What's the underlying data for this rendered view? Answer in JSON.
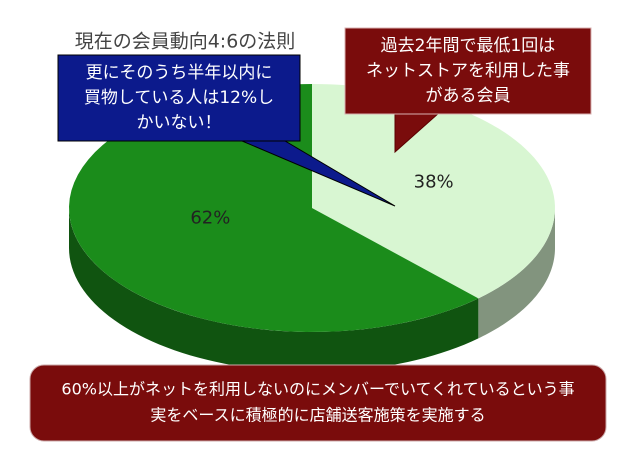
{
  "chart_data": {
    "type": "pie",
    "title": "現在の会員動向4:6の法則",
    "values": [
      38,
      62
    ],
    "value_labels": [
      "38%",
      "62%"
    ],
    "colors": [
      "#d8f6d2",
      "#1b8c1b"
    ],
    "annotations": [
      [
        "過去2年間で最低1回は",
        "ネットストアを利用した事",
        "がある会員"
      ],
      [
        "更にそのうち半年以内に",
        "買物している人は12%し",
        "かいない！"
      ]
    ],
    "footnote": [
      "60%以上がネットを利用しないのにメンバーでいてくれているという事",
      "実をベースに積極的に店舗送客施策を実施する"
    ]
  }
}
